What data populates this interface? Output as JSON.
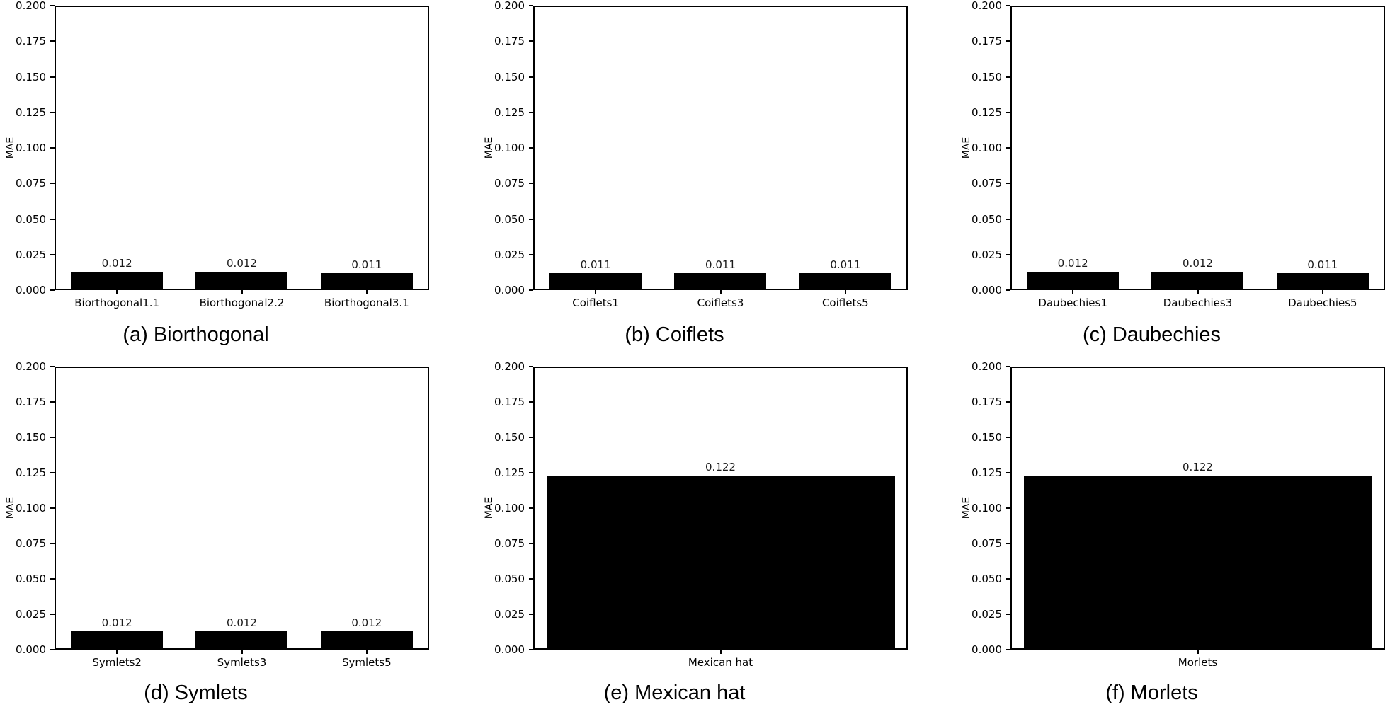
{
  "figure": {
    "background": "#ffffff",
    "bar_color": "#000000",
    "text_color": "#000000",
    "axis": {
      "ylabel": "MAE",
      "ylim": [
        0,
        0.2
      ],
      "ytick_step": 0.025,
      "ytick_labels": [
        "0.200",
        "0.175",
        "0.150",
        "0.125",
        "0.100",
        "0.075",
        "0.050",
        "0.025",
        "0.000"
      ],
      "grid": false,
      "legend": "none"
    }
  },
  "chart_data": [
    {
      "type": "bar",
      "panel": "a",
      "caption": "(a) Biorthogonal",
      "xlabel": "",
      "ylabel": "MAE",
      "ylim": [
        0,
        0.2
      ],
      "categories": [
        "Biorthogonal1.1",
        "Biorthogonal2.2",
        "Biorthogonal3.1"
      ],
      "values": [
        0.012,
        0.012,
        0.011
      ],
      "value_labels": [
        "0.012",
        "0.012",
        "0.011"
      ]
    },
    {
      "type": "bar",
      "panel": "b",
      "caption": "(b) Coiflets",
      "xlabel": "",
      "ylabel": "MAE",
      "ylim": [
        0,
        0.2
      ],
      "categories": [
        "Coiflets1",
        "Coiflets3",
        "Coiflets5"
      ],
      "values": [
        0.011,
        0.011,
        0.011
      ],
      "value_labels": [
        "0.011",
        "0.011",
        "0.011"
      ]
    },
    {
      "type": "bar",
      "panel": "c",
      "caption": "(c) Daubechies",
      "xlabel": "",
      "ylabel": "MAE",
      "ylim": [
        0,
        0.2
      ],
      "categories": [
        "Daubechies1",
        "Daubechies3",
        "Daubechies5"
      ],
      "values": [
        0.012,
        0.012,
        0.011
      ],
      "value_labels": [
        "0.012",
        "0.012",
        "0.011"
      ]
    },
    {
      "type": "bar",
      "panel": "d",
      "caption": "(d) Symlets",
      "xlabel": "",
      "ylabel": "MAE",
      "ylim": [
        0,
        0.2
      ],
      "categories": [
        "Symlets2",
        "Symlets3",
        "Symlets5"
      ],
      "values": [
        0.012,
        0.012,
        0.012
      ],
      "value_labels": [
        "0.012",
        "0.012",
        "0.012"
      ]
    },
    {
      "type": "bar",
      "panel": "e",
      "caption": "(e) Mexican hat",
      "xlabel": "",
      "ylabel": "MAE",
      "ylim": [
        0,
        0.2
      ],
      "categories": [
        "Mexican hat"
      ],
      "values": [
        0.122
      ],
      "value_labels": [
        "0.122"
      ]
    },
    {
      "type": "bar",
      "panel": "f",
      "caption": "(f) Morlets",
      "xlabel": "",
      "ylabel": "MAE",
      "ylim": [
        0,
        0.2
      ],
      "categories": [
        "Morlets"
      ],
      "values": [
        0.122
      ],
      "value_labels": [
        "0.122"
      ]
    }
  ]
}
